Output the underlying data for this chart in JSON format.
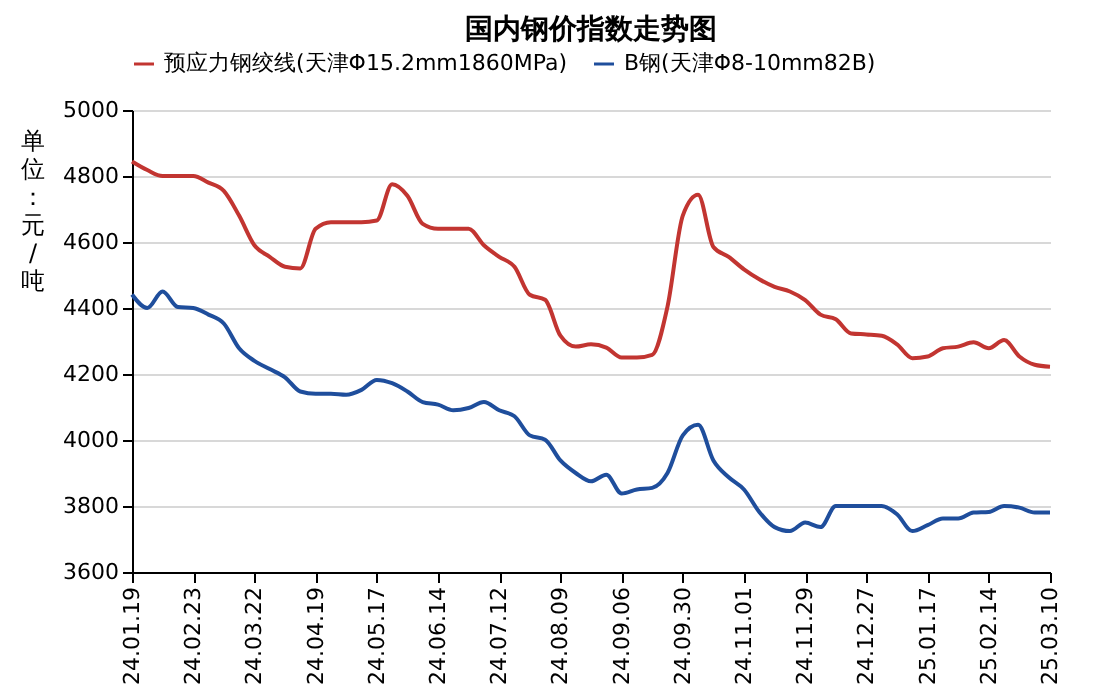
{
  "chart_data": {
    "type": "line",
    "title": "国内钢价指数走势图",
    "ylabel": "单位：元/吨",
    "categories": [
      "24.01.19",
      null,
      null,
      null,
      "24.02.23",
      null,
      null,
      null,
      "24.03.22",
      null,
      null,
      null,
      "24.04.19",
      null,
      null,
      null,
      "24.05.17",
      null,
      null,
      null,
      "24.06.14",
      null,
      null,
      null,
      "24.07.12",
      null,
      null,
      null,
      "24.08.09",
      null,
      null,
      null,
      "24.09.06",
      null,
      null,
      null,
      "24.09.30",
      null,
      null,
      null,
      "24.11.01",
      null,
      null,
      null,
      "24.11.29",
      null,
      null,
      null,
      "24.12.27",
      null,
      null,
      null,
      "25.01.17",
      null,
      null,
      null,
      "25.02.14",
      null,
      null,
      null,
      "25.03.10"
    ],
    "series": [
      {
        "name": "预应力钢绞线(天津Φ15.2mm1860MPa)",
        "color": "#c23531",
        "values": [
          4844,
          4818,
          4800,
          4800,
          4800,
          4780,
          4755,
          4680,
          4590,
          4555,
          4525,
          4520,
          4640,
          4660,
          4660,
          4660,
          4665,
          4775,
          4740,
          4655,
          4640,
          4640,
          4640,
          4590,
          4555,
          4525,
          4440,
          4425,
          4316,
          4283,
          4290,
          4280,
          4250,
          4250,
          4258,
          4404,
          4680,
          4743,
          4585,
          4555,
          4517,
          4487,
          4464,
          4450,
          4424,
          4380,
          4366,
          4323,
          4320,
          4316,
          4290,
          4248,
          4253,
          4278,
          4283,
          4296,
          4278,
          4303,
          4253,
          4228,
          4222
        ]
      },
      {
        "name": "B钢(天津Φ8-10mm82B)",
        "color": "#1f4e9c",
        "values": [
          4441,
          4400,
          4450,
          4403,
          4400,
          4380,
          4353,
          4278,
          4240,
          4215,
          4190,
          4147,
          4140,
          4140,
          4137,
          4152,
          4182,
          4172,
          4147,
          4115,
          4107,
          4090,
          4097,
          4115,
          4090,
          4072,
          4014,
          4001,
          3938,
          3900,
          3875,
          3895,
          3838,
          3850,
          3855,
          3900,
          4014,
          4046,
          3938,
          3887,
          3850,
          3782,
          3736,
          3724,
          3750,
          3736,
          3800,
          3800,
          3800,
          3800,
          3775,
          3724,
          3742,
          3762,
          3762,
          3780,
          3782,
          3800,
          3795,
          3780,
          3780
        ]
      }
    ],
    "ylim": [
      3600,
      5000
    ],
    "yticks": [
      3600,
      3800,
      4000,
      4200,
      4400,
      4600,
      4800,
      5000
    ],
    "grid": "y",
    "legend": "top",
    "marker": "none",
    "line_style": "solid"
  }
}
